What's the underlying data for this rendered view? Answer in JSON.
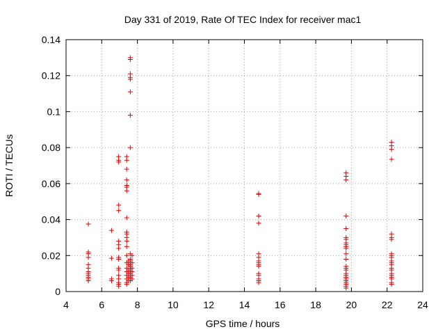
{
  "chart_data": {
    "type": "scatter",
    "title": "Day 331 of 2019, Rate Of TEC Index for receiver mac1",
    "xlabel": "GPS time / hours",
    "ylabel": "ROTI / TECUs",
    "xlim": [
      4,
      24
    ],
    "ylim": [
      0,
      0.14
    ],
    "x_ticks": [
      4,
      6,
      8,
      10,
      12,
      14,
      16,
      18,
      20,
      22,
      24
    ],
    "x_tick_labels": [
      "4",
      "6",
      "8",
      "10",
      "12",
      "14",
      "16",
      "18",
      "20",
      "22",
      "24"
    ],
    "y_ticks": [
      0,
      0.02,
      0.04,
      0.06,
      0.08,
      0.1,
      0.12,
      0.14
    ],
    "y_tick_labels": [
      "0",
      "0.02",
      "0.04",
      "0.06",
      "0.08",
      "0.1",
      "0.12",
      "0.14"
    ],
    "grid": true,
    "marker": "+",
    "color": "#e00000",
    "series": [
      {
        "name": "ROTI",
        "points": [
          [
            5.25,
            0.0375
          ],
          [
            5.25,
            0.022
          ],
          [
            5.25,
            0.021
          ],
          [
            5.25,
            0.019
          ],
          [
            5.25,
            0.015
          ],
          [
            5.25,
            0.013
          ],
          [
            5.25,
            0.011
          ],
          [
            5.25,
            0.01
          ],
          [
            5.25,
            0.009
          ],
          [
            5.25,
            0.008
          ],
          [
            5.25,
            0.007
          ],
          [
            5.25,
            0.006
          ],
          [
            6.55,
            0.034
          ],
          [
            6.55,
            0.0185
          ],
          [
            6.55,
            0.007
          ],
          [
            6.55,
            0.006
          ],
          [
            6.95,
            0.075
          ],
          [
            6.95,
            0.073
          ],
          [
            6.95,
            0.072
          ],
          [
            6.95,
            0.048
          ],
          [
            6.95,
            0.045
          ],
          [
            6.95,
            0.028
          ],
          [
            6.95,
            0.026
          ],
          [
            6.95,
            0.024
          ],
          [
            6.95,
            0.019
          ],
          [
            6.95,
            0.018
          ],
          [
            6.95,
            0.013
          ],
          [
            6.95,
            0.012
          ],
          [
            6.95,
            0.009
          ],
          [
            6.95,
            0.007
          ],
          [
            6.95,
            0.005
          ],
          [
            6.95,
            0.004
          ],
          [
            6.95,
            0.003
          ],
          [
            7.4,
            0.075
          ],
          [
            7.4,
            0.073
          ],
          [
            7.4,
            0.068
          ],
          [
            7.4,
            0.062
          ],
          [
            7.4,
            0.059
          ],
          [
            7.4,
            0.058
          ],
          [
            7.4,
            0.056
          ],
          [
            7.4,
            0.041
          ],
          [
            7.4,
            0.033
          ],
          [
            7.4,
            0.032
          ],
          [
            7.4,
            0.03
          ],
          [
            7.4,
            0.028
          ],
          [
            7.4,
            0.025
          ],
          [
            7.4,
            0.02
          ],
          [
            7.4,
            0.016
          ],
          [
            7.4,
            0.013
          ],
          [
            7.4,
            0.011
          ],
          [
            7.4,
            0.009
          ],
          [
            7.4,
            0.007
          ],
          [
            7.4,
            0.005
          ],
          [
            7.4,
            0.004
          ],
          [
            7.6,
            0.13
          ],
          [
            7.6,
            0.129
          ],
          [
            7.6,
            0.121
          ],
          [
            7.6,
            0.119
          ],
          [
            7.6,
            0.118
          ],
          [
            7.6,
            0.111
          ],
          [
            7.6,
            0.098
          ],
          [
            7.6,
            0.08
          ],
          [
            7.6,
            0.021
          ],
          [
            7.6,
            0.018
          ],
          [
            7.6,
            0.017
          ],
          [
            7.6,
            0.016
          ],
          [
            7.6,
            0.015
          ],
          [
            7.6,
            0.014
          ],
          [
            7.6,
            0.013
          ],
          [
            7.6,
            0.012
          ],
          [
            7.6,
            0.011
          ],
          [
            7.6,
            0.01
          ],
          [
            7.6,
            0.009
          ],
          [
            7.6,
            0.008
          ],
          [
            7.6,
            0.007
          ],
          [
            7.6,
            0.006
          ],
          [
            7.5,
            0.017
          ],
          [
            7.5,
            0.015
          ],
          [
            7.5,
            0.012
          ],
          [
            7.5,
            0.01
          ],
          [
            7.5,
            0.008
          ],
          [
            7.5,
            0.006
          ],
          [
            7.7,
            0.02
          ],
          [
            7.7,
            0.016
          ],
          [
            7.7,
            0.013
          ],
          [
            7.7,
            0.011
          ],
          [
            7.7,
            0.009
          ],
          [
            7.7,
            0.007
          ],
          [
            14.8,
            0.0545
          ],
          [
            14.8,
            0.054
          ],
          [
            14.8,
            0.042
          ],
          [
            14.8,
            0.038
          ],
          [
            14.8,
            0.021
          ],
          [
            14.8,
            0.019
          ],
          [
            14.8,
            0.017
          ],
          [
            14.8,
            0.016
          ],
          [
            14.8,
            0.015
          ],
          [
            14.8,
            0.014
          ],
          [
            14.8,
            0.01
          ],
          [
            14.8,
            0.009
          ],
          [
            14.8,
            0.007
          ],
          [
            14.8,
            0.006
          ],
          [
            14.8,
            0.005
          ],
          [
            19.7,
            0.066
          ],
          [
            19.7,
            0.064
          ],
          [
            19.7,
            0.062
          ],
          [
            19.7,
            0.042
          ],
          [
            19.7,
            0.035
          ],
          [
            19.7,
            0.03
          ],
          [
            19.7,
            0.029
          ],
          [
            19.7,
            0.027
          ],
          [
            19.7,
            0.026
          ],
          [
            19.7,
            0.025
          ],
          [
            19.7,
            0.024
          ],
          [
            19.7,
            0.021
          ],
          [
            19.7,
            0.018
          ],
          [
            19.7,
            0.014
          ],
          [
            19.7,
            0.013
          ],
          [
            19.7,
            0.012
          ],
          [
            19.7,
            0.01
          ],
          [
            19.7,
            0.009
          ],
          [
            19.7,
            0.008
          ],
          [
            19.7,
            0.007
          ],
          [
            19.7,
            0.006
          ],
          [
            19.7,
            0.005
          ],
          [
            19.7,
            0.004
          ],
          [
            19.7,
            0.003
          ],
          [
            19.7,
            0.002
          ],
          [
            22.25,
            0.083
          ],
          [
            22.25,
            0.081
          ],
          [
            22.25,
            0.079
          ],
          [
            22.25,
            0.0735
          ],
          [
            22.25,
            0.032
          ],
          [
            22.25,
            0.03
          ],
          [
            22.25,
            0.029
          ],
          [
            22.25,
            0.021
          ],
          [
            22.25,
            0.02
          ],
          [
            22.25,
            0.019
          ],
          [
            22.25,
            0.017
          ],
          [
            22.25,
            0.016
          ],
          [
            22.25,
            0.015
          ],
          [
            22.25,
            0.013
          ],
          [
            22.25,
            0.012
          ],
          [
            22.25,
            0.01
          ],
          [
            22.25,
            0.009
          ],
          [
            22.25,
            0.008
          ],
          [
            22.25,
            0.007
          ],
          [
            22.25,
            0.005
          ],
          [
            22.25,
            0.004
          ]
        ]
      }
    ]
  }
}
